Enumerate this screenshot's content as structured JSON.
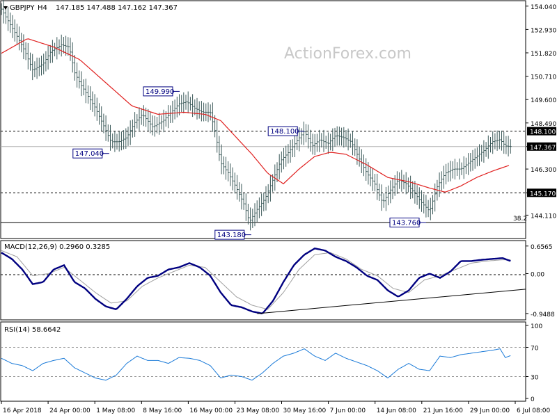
{
  "chart_data": {
    "type": "line",
    "symbol": "GBPJPY",
    "timeframe": "H4",
    "header_ohlc": "147.185 147.488 147.162 147.367",
    "watermark": "ActionForex.com",
    "colors": {
      "background": "#ffffff",
      "candles": "#3c5a5a",
      "moving_average": "#e0201f",
      "macd": "#000080",
      "signal": "#a0a0a0",
      "rsi": "#1a7ad8",
      "label_box_fill": "#ffffff",
      "label_box_border": "#000080",
      "label_text": "#000080",
      "current_price_box": "#000000",
      "watermark": "#c8c8c8"
    },
    "x_labels": [
      "16 Apr 2018",
      "24 Apr 00:00",
      "1 May 08:00",
      "8 May 16:00",
      "16 May 00:00",
      "23 May 08:00",
      "30 May 16:00",
      "7 Jun 00:00",
      "14 Jun 08:00",
      "21 Jun 16:00",
      "29 Jun 00:00",
      "6 Jul 08:00"
    ],
    "price_panel": {
      "ylim": [
        143.1,
        154.2
      ],
      "ticks": [
        154.04,
        152.93,
        151.82,
        150.71,
        149.6,
        148.49,
        147.367,
        146.3,
        145.17,
        144.11
      ],
      "tick_labels": [
        "154.040",
        "152.930",
        "151.820",
        "150.710",
        "149.600",
        "148.490",
        "147.367",
        "146.300",
        "145.170",
        "144.110"
      ],
      "current_price": 147.367,
      "current_price_label": "147.367",
      "horizontal_levels": [
        {
          "value": 148.1,
          "label": "148.100",
          "style": "dashed"
        },
        {
          "value": 145.17,
          "label": "145.170",
          "style": "dashed"
        },
        {
          "value": 143.76,
          "label": "38.2",
          "style": "solid"
        }
      ],
      "annotations": [
        {
          "text": "149.990",
          "x": 0.328,
          "price": 149.99
        },
        {
          "text": "147.040",
          "x": 0.193,
          "price": 147.04
        },
        {
          "text": "148.100",
          "x": 0.567,
          "price": 148.1
        },
        {
          "text": "143.180",
          "x": 0.465,
          "price": 143.18
        },
        {
          "text": "143.760",
          "x": 0.8,
          "price": 143.76
        }
      ],
      "close_key": [
        [
          0.0,
          153.9
        ],
        [
          0.03,
          152.6
        ],
        [
          0.045,
          151.9
        ],
        [
          0.06,
          151.0
        ],
        [
          0.08,
          151.3
        ],
        [
          0.095,
          151.9
        ],
        [
          0.115,
          152.2
        ],
        [
          0.13,
          152.1
        ],
        [
          0.14,
          150.9
        ],
        [
          0.15,
          150.4
        ],
        [
          0.165,
          149.8
        ],
        [
          0.18,
          149.2
        ],
        [
          0.195,
          148.4
        ],
        [
          0.21,
          147.6
        ],
        [
          0.225,
          147.6
        ],
        [
          0.24,
          147.8
        ],
        [
          0.255,
          148.5
        ],
        [
          0.27,
          148.9
        ],
        [
          0.29,
          148.3
        ],
        [
          0.31,
          148.6
        ],
        [
          0.325,
          149.0
        ],
        [
          0.34,
          149.4
        ],
        [
          0.355,
          149.5
        ],
        [
          0.37,
          149.2
        ],
        [
          0.385,
          149.0
        ],
        [
          0.4,
          149.0
        ],
        [
          0.41,
          148.0
        ],
        [
          0.42,
          146.6
        ],
        [
          0.435,
          146.1
        ],
        [
          0.45,
          145.4
        ],
        [
          0.465,
          144.6
        ],
        [
          0.475,
          143.8
        ],
        [
          0.49,
          144.4
        ],
        [
          0.505,
          144.9
        ],
        [
          0.52,
          145.8
        ],
        [
          0.535,
          146.7
        ],
        [
          0.55,
          147.1
        ],
        [
          0.565,
          147.6
        ],
        [
          0.58,
          148.1
        ],
        [
          0.595,
          147.4
        ],
        [
          0.61,
          147.7
        ],
        [
          0.625,
          147.5
        ],
        [
          0.64,
          147.9
        ],
        [
          0.655,
          147.8
        ],
        [
          0.67,
          147.6
        ],
        [
          0.685,
          146.8
        ],
        [
          0.7,
          146.1
        ],
        [
          0.715,
          145.6
        ],
        [
          0.73,
          144.7
        ],
        [
          0.745,
          145.3
        ],
        [
          0.76,
          145.8
        ],
        [
          0.775,
          145.6
        ],
        [
          0.79,
          145.2
        ],
        [
          0.805,
          144.7
        ],
        [
          0.82,
          144.3
        ],
        [
          0.835,
          145.5
        ],
        [
          0.85,
          146.1
        ],
        [
          0.865,
          146.3
        ],
        [
          0.88,
          146.3
        ],
        [
          0.895,
          146.6
        ],
        [
          0.91,
          146.9
        ],
        [
          0.925,
          147.2
        ],
        [
          0.94,
          147.6
        ],
        [
          0.955,
          147.7
        ],
        [
          0.965,
          147.4
        ],
        [
          0.975,
          147.37
        ]
      ],
      "ma_key": [
        [
          0.0,
          151.8
        ],
        [
          0.05,
          152.5
        ],
        [
          0.1,
          152.1
        ],
        [
          0.15,
          151.5
        ],
        [
          0.2,
          150.4
        ],
        [
          0.25,
          149.3
        ],
        [
          0.3,
          148.9
        ],
        [
          0.35,
          149.0
        ],
        [
          0.39,
          148.9
        ],
        [
          0.42,
          148.6
        ],
        [
          0.45,
          147.8
        ],
        [
          0.48,
          147.0
        ],
        [
          0.51,
          146.1
        ],
        [
          0.54,
          145.6
        ],
        [
          0.57,
          146.3
        ],
        [
          0.6,
          146.9
        ],
        [
          0.63,
          147.1
        ],
        [
          0.66,
          147.0
        ],
        [
          0.7,
          146.5
        ],
        [
          0.74,
          145.9
        ],
        [
          0.78,
          145.7
        ],
        [
          0.82,
          145.4
        ],
        [
          0.85,
          145.2
        ],
        [
          0.88,
          145.5
        ],
        [
          0.91,
          145.9
        ],
        [
          0.94,
          146.2
        ],
        [
          0.975,
          146.5
        ]
      ]
    },
    "macd_panel": {
      "title": "MACD(12,26,9) 0.2960 0.3285",
      "ylim": [
        -1.05,
        0.72
      ],
      "ticks": [
        0.6565,
        0.0,
        -0.9488
      ],
      "tick_labels": [
        "0.6565",
        "0.00",
        "-0.9488"
      ],
      "macd_key": [
        [
          0.0,
          0.5
        ],
        [
          0.02,
          0.35
        ],
        [
          0.04,
          0.1
        ],
        [
          0.06,
          -0.25
        ],
        [
          0.08,
          -0.2
        ],
        [
          0.1,
          0.1
        ],
        [
          0.12,
          0.2
        ],
        [
          0.14,
          -0.2
        ],
        [
          0.16,
          -0.35
        ],
        [
          0.18,
          -0.6
        ],
        [
          0.2,
          -0.78
        ],
        [
          0.22,
          -0.85
        ],
        [
          0.24,
          -0.6
        ],
        [
          0.26,
          -0.3
        ],
        [
          0.28,
          -0.1
        ],
        [
          0.3,
          -0.05
        ],
        [
          0.32,
          0.1
        ],
        [
          0.34,
          0.15
        ],
        [
          0.36,
          0.25
        ],
        [
          0.38,
          0.15
        ],
        [
          0.4,
          -0.05
        ],
        [
          0.42,
          -0.45
        ],
        [
          0.44,
          -0.75
        ],
        [
          0.46,
          -0.8
        ],
        [
          0.48,
          -0.9
        ],
        [
          0.5,
          -0.95
        ],
        [
          0.52,
          -0.65
        ],
        [
          0.54,
          -0.2
        ],
        [
          0.56,
          0.2
        ],
        [
          0.58,
          0.45
        ],
        [
          0.6,
          0.6
        ],
        [
          0.62,
          0.55
        ],
        [
          0.64,
          0.4
        ],
        [
          0.66,
          0.3
        ],
        [
          0.68,
          0.15
        ],
        [
          0.7,
          -0.05
        ],
        [
          0.72,
          -0.15
        ],
        [
          0.74,
          -0.4
        ],
        [
          0.76,
          -0.55
        ],
        [
          0.78,
          -0.4
        ],
        [
          0.8,
          -0.1
        ],
        [
          0.82,
          0.0
        ],
        [
          0.84,
          -0.1
        ],
        [
          0.86,
          0.05
        ],
        [
          0.88,
          0.3
        ],
        [
          0.9,
          0.3
        ],
        [
          0.92,
          0.33
        ],
        [
          0.94,
          0.35
        ],
        [
          0.96,
          0.37
        ],
        [
          0.975,
          0.3
        ]
      ],
      "signal_key": [
        [
          0.0,
          0.55
        ],
        [
          0.03,
          0.4
        ],
        [
          0.06,
          -0.05
        ],
        [
          0.09,
          0.0
        ],
        [
          0.12,
          0.15
        ],
        [
          0.15,
          -0.15
        ],
        [
          0.18,
          -0.45
        ],
        [
          0.21,
          -0.7
        ],
        [
          0.24,
          -0.65
        ],
        [
          0.27,
          -0.3
        ],
        [
          0.3,
          -0.1
        ],
        [
          0.33,
          0.05
        ],
        [
          0.36,
          0.2
        ],
        [
          0.39,
          0.15
        ],
        [
          0.42,
          -0.2
        ],
        [
          0.45,
          -0.55
        ],
        [
          0.48,
          -0.75
        ],
        [
          0.51,
          -0.85
        ],
        [
          0.54,
          -0.45
        ],
        [
          0.57,
          0.1
        ],
        [
          0.6,
          0.45
        ],
        [
          0.63,
          0.5
        ],
        [
          0.66,
          0.35
        ],
        [
          0.69,
          0.1
        ],
        [
          0.72,
          -0.05
        ],
        [
          0.75,
          -0.35
        ],
        [
          0.78,
          -0.45
        ],
        [
          0.81,
          -0.15
        ],
        [
          0.84,
          -0.05
        ],
        [
          0.87,
          0.1
        ],
        [
          0.9,
          0.25
        ],
        [
          0.93,
          0.3
        ],
        [
          0.96,
          0.33
        ],
        [
          0.975,
          0.33
        ]
      ],
      "trendline": {
        "from": [
          0.49,
          -0.95
        ],
        "to": [
          1.0,
          -0.37
        ]
      }
    },
    "rsi_panel": {
      "title": "RSI(14) 58.6642",
      "ylim": [
        0,
        100
      ],
      "ticks": [
        100,
        70,
        30,
        0
      ],
      "tick_labels": [
        "100",
        "70",
        "30",
        "0"
      ],
      "dashed_levels": [
        70,
        30
      ],
      "rsi_key": [
        [
          0.0,
          55
        ],
        [
          0.02,
          48
        ],
        [
          0.04,
          45
        ],
        [
          0.06,
          38
        ],
        [
          0.08,
          48
        ],
        [
          0.1,
          52
        ],
        [
          0.12,
          55
        ],
        [
          0.14,
          42
        ],
        [
          0.16,
          35
        ],
        [
          0.18,
          28
        ],
        [
          0.2,
          25
        ],
        [
          0.22,
          32
        ],
        [
          0.24,
          48
        ],
        [
          0.26,
          58
        ],
        [
          0.28,
          52
        ],
        [
          0.3,
          52
        ],
        [
          0.32,
          48
        ],
        [
          0.34,
          56
        ],
        [
          0.36,
          55
        ],
        [
          0.38,
          52
        ],
        [
          0.4,
          45
        ],
        [
          0.42,
          28
        ],
        [
          0.44,
          32
        ],
        [
          0.46,
          30
        ],
        [
          0.48,
          25
        ],
        [
          0.5,
          35
        ],
        [
          0.52,
          48
        ],
        [
          0.54,
          58
        ],
        [
          0.56,
          62
        ],
        [
          0.58,
          68
        ],
        [
          0.6,
          58
        ],
        [
          0.62,
          52
        ],
        [
          0.64,
          62
        ],
        [
          0.66,
          55
        ],
        [
          0.68,
          50
        ],
        [
          0.7,
          45
        ],
        [
          0.72,
          38
        ],
        [
          0.74,
          28
        ],
        [
          0.76,
          40
        ],
        [
          0.78,
          48
        ],
        [
          0.8,
          40
        ],
        [
          0.82,
          38
        ],
        [
          0.84,
          58
        ],
        [
          0.86,
          56
        ],
        [
          0.88,
          60
        ],
        [
          0.9,
          62
        ],
        [
          0.92,
          64
        ],
        [
          0.94,
          66
        ],
        [
          0.955,
          68
        ],
        [
          0.965,
          56
        ],
        [
          0.975,
          58.66
        ]
      ]
    }
  }
}
